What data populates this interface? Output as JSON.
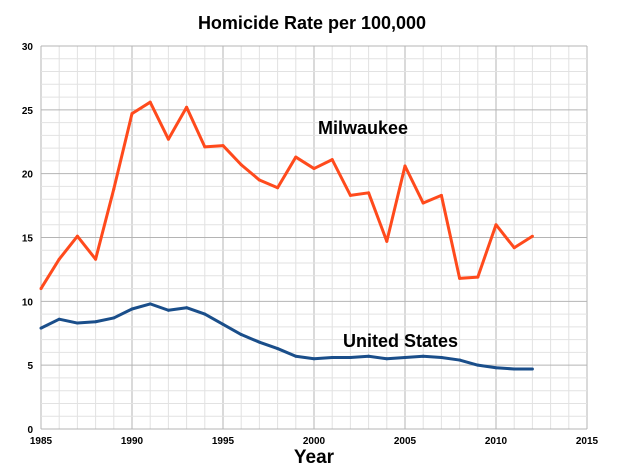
{
  "chart_data": {
    "type": "line",
    "title": "Homicide Rate per 100,000",
    "xlabel": "Year",
    "ylabel": "",
    "xlim": [
      1985,
      2015
    ],
    "ylim": [
      0,
      30
    ],
    "xticks": [
      1985,
      1990,
      1995,
      2000,
      2005,
      2010,
      2015
    ],
    "yticks": [
      0,
      5,
      10,
      15,
      20,
      25,
      30
    ],
    "grid": true,
    "x": [
      1985,
      1986,
      1987,
      1988,
      1989,
      1990,
      1991,
      1992,
      1993,
      1994,
      1995,
      1996,
      1997,
      1998,
      1999,
      2000,
      2001,
      2002,
      2003,
      2004,
      2005,
      2006,
      2007,
      2008,
      2009,
      2010,
      2011,
      2012
    ],
    "series": [
      {
        "name": "Milwaukee",
        "color": "#ff4a1c",
        "values": [
          11.0,
          13.3,
          15.1,
          13.3,
          18.8,
          24.7,
          25.6,
          22.7,
          25.2,
          22.1,
          22.2,
          20.7,
          19.5,
          18.9,
          21.3,
          20.4,
          21.1,
          18.3,
          18.5,
          14.7,
          20.6,
          17.7,
          18.3,
          11.8,
          11.9,
          16.0,
          14.2,
          15.1
        ]
      },
      {
        "name": "United States",
        "color": "#1a4e8a",
        "values": [
          7.9,
          8.6,
          8.3,
          8.4,
          8.7,
          9.4,
          9.8,
          9.3,
          9.5,
          9.0,
          8.2,
          7.4,
          6.8,
          6.3,
          5.7,
          5.5,
          5.6,
          5.6,
          5.7,
          5.5,
          5.6,
          5.7,
          5.6,
          5.4,
          5.0,
          4.8,
          4.7,
          4.7
        ]
      }
    ]
  }
}
